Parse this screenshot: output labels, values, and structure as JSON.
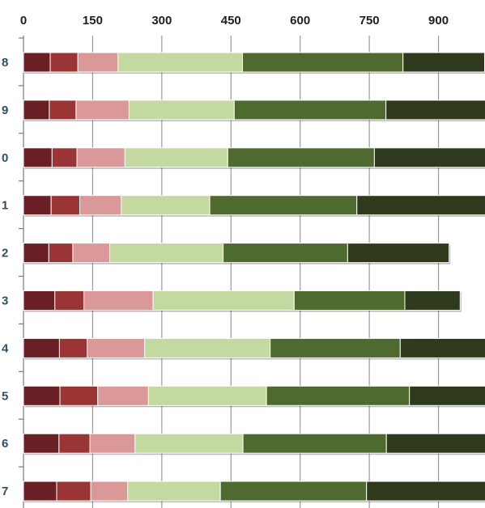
{
  "chart_data": {
    "type": "bar",
    "orientation": "horizontal",
    "stacked": true,
    "title": "",
    "xlabel": "",
    "ylabel": "",
    "xlim": [
      0,
      1000
    ],
    "xticks": [
      0,
      150,
      300,
      450,
      600,
      750,
      900
    ],
    "xtick_labels": [
      "0",
      "150",
      "300",
      "450",
      "600",
      "750",
      "900"
    ],
    "grid": true,
    "legend": "none",
    "categories": [
      "8",
      "9",
      "0",
      "1",
      "2",
      "3",
      "4",
      "5",
      "6",
      "7"
    ],
    "series": [
      {
        "color": "#6a1f24",
        "values": [
          58,
          56,
          62,
          60,
          55,
          68,
          78,
          79,
          77,
          72
        ]
      },
      {
        "color": "#9b3535",
        "values": [
          60,
          58,
          54,
          62,
          52,
          63,
          60,
          82,
          67,
          74
        ]
      },
      {
        "color": "#da9899",
        "values": [
          87,
          115,
          104,
          90,
          80,
          150,
          125,
          110,
          98,
          80
        ]
      },
      {
        "color": "#c4d9a0",
        "values": [
          270,
          228,
          223,
          192,
          246,
          306,
          272,
          256,
          234,
          201
        ]
      },
      {
        "color": "#4f6a2e",
        "values": [
          348,
          329,
          318,
          319,
          270,
          240,
          282,
          310,
          311,
          317
        ]
      },
      {
        "color": "#2f3a1c",
        "values": [
          177,
          219,
          246,
          283,
          220,
          120,
          193,
          175,
          219,
          261
        ]
      }
    ]
  }
}
